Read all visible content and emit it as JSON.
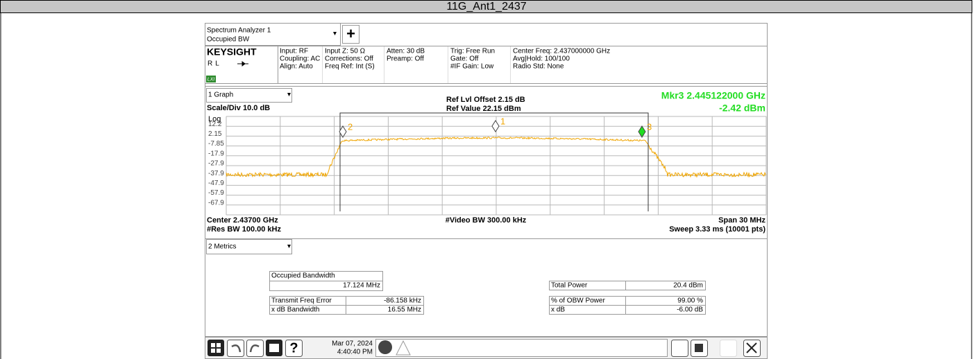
{
  "header": {
    "title": "11G_Ant1_2437"
  },
  "toolbar": {
    "mode_line1": "Spectrum Analyzer 1",
    "mode_line2": "Occupied BW",
    "add": "+"
  },
  "settings": {
    "brand": "KEYSIGHT",
    "rl": "RL",
    "lxi": "LXI",
    "columns": [
      [
        "Input: RF",
        "Coupling: AC",
        "Align: Auto"
      ],
      [
        "Input Z: 50 Ω",
        "Corrections: Off",
        "Freq Ref: Int (S)"
      ],
      [
        "Atten: 30 dB",
        "Preamp: Off"
      ],
      [
        "Trig: Free Run",
        "Gate: Off",
        "#IF Gain: Low"
      ],
      [
        "Center Freq: 2.437000000 GHz",
        "Avg|Hold: 100/100",
        "Radio Std: None"
      ]
    ]
  },
  "graph": {
    "selector": "1 Graph",
    "ref_offset": "Ref Lvl Offset 2.15 dB",
    "ref_value": "Ref Value 22.15 dBm",
    "scale": "Scale/Div 10.0 dB",
    "scale_type": "Log",
    "marker_readout": "Mkr3  2.445122000 GHz",
    "marker_value": "-2.42 dBm",
    "y_labels": [
      "12.2",
      "2.15",
      "-7.85",
      "-17.9",
      "-27.9",
      "-37.9",
      "-47.9",
      "-57.9",
      "-67.9"
    ],
    "markers": [
      "1",
      "2",
      "3"
    ],
    "center": "Center 2.43700 GHz",
    "res_bw": "#Res BW 100.00 kHz",
    "video_bw": "#Video BW 300.00 kHz",
    "span": "Span 30 MHz",
    "sweep": "Sweep 3.33 ms (10001 pts)"
  },
  "metrics": {
    "selector": "2 Metrics",
    "obw_label": "Occupied Bandwidth",
    "obw_value": "17.124 MHz",
    "left_rows": [
      [
        "Transmit Freq Error",
        "-86.158 kHz"
      ],
      [
        "x dB Bandwidth",
        "16.55 MHz"
      ]
    ],
    "right_rows": [
      [
        "Total Power",
        "20.4 dBm"
      ],
      [
        "% of OBW Power",
        "99.00 %"
      ],
      [
        "x dB",
        "-6.00 dB"
      ]
    ]
  },
  "status": {
    "date": "Mar 07, 2024",
    "time": "4:40:40 PM"
  }
}
